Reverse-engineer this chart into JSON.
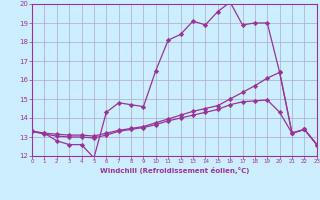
{
  "background_color": "#cceeff",
  "grid_color": "#aaaacc",
  "line_color": "#993399",
  "x_label": "Windchill (Refroidissement éolien,°C)",
  "xlim": [
    0,
    23
  ],
  "ylim": [
    12,
    20
  ],
  "yticks": [
    12,
    13,
    14,
    15,
    16,
    17,
    18,
    19,
    20
  ],
  "xticks": [
    0,
    1,
    2,
    3,
    4,
    5,
    6,
    7,
    8,
    9,
    10,
    11,
    12,
    13,
    14,
    15,
    16,
    17,
    18,
    19,
    20,
    21,
    22,
    23
  ],
  "line1_x": [
    0,
    1,
    2,
    3,
    4,
    5,
    6,
    7,
    8,
    9,
    10,
    11,
    12,
    13,
    14,
    15,
    16,
    17,
    18,
    19,
    20,
    21,
    22,
    23
  ],
  "line1_y": [
    13.3,
    13.2,
    12.8,
    12.6,
    12.6,
    11.9,
    14.3,
    14.8,
    14.7,
    14.6,
    16.5,
    18.1,
    18.4,
    19.1,
    18.9,
    19.6,
    20.1,
    18.9,
    19.0,
    19.0,
    16.4,
    13.2,
    13.4,
    12.6
  ],
  "line2_x": [
    0,
    1,
    2,
    3,
    4,
    5,
    6,
    7,
    8,
    9,
    10,
    11,
    12,
    13,
    14,
    15,
    16,
    17,
    18,
    19,
    20,
    21,
    22,
    23
  ],
  "line2_y": [
    13.3,
    13.2,
    13.15,
    13.1,
    13.1,
    13.05,
    13.2,
    13.35,
    13.45,
    13.55,
    13.75,
    13.95,
    14.15,
    14.35,
    14.5,
    14.65,
    15.0,
    15.35,
    15.7,
    16.1,
    16.4,
    13.2,
    13.4,
    12.6
  ],
  "line3_x": [
    0,
    1,
    2,
    3,
    4,
    5,
    6,
    7,
    8,
    9,
    10,
    11,
    12,
    13,
    14,
    15,
    16,
    17,
    18,
    19,
    20,
    21,
    22,
    23
  ],
  "line3_y": [
    13.3,
    13.15,
    13.05,
    13.0,
    13.0,
    12.95,
    13.1,
    13.3,
    13.4,
    13.5,
    13.65,
    13.85,
    14.0,
    14.15,
    14.3,
    14.45,
    14.7,
    14.85,
    14.9,
    14.95,
    14.3,
    13.2,
    13.4,
    12.6
  ]
}
